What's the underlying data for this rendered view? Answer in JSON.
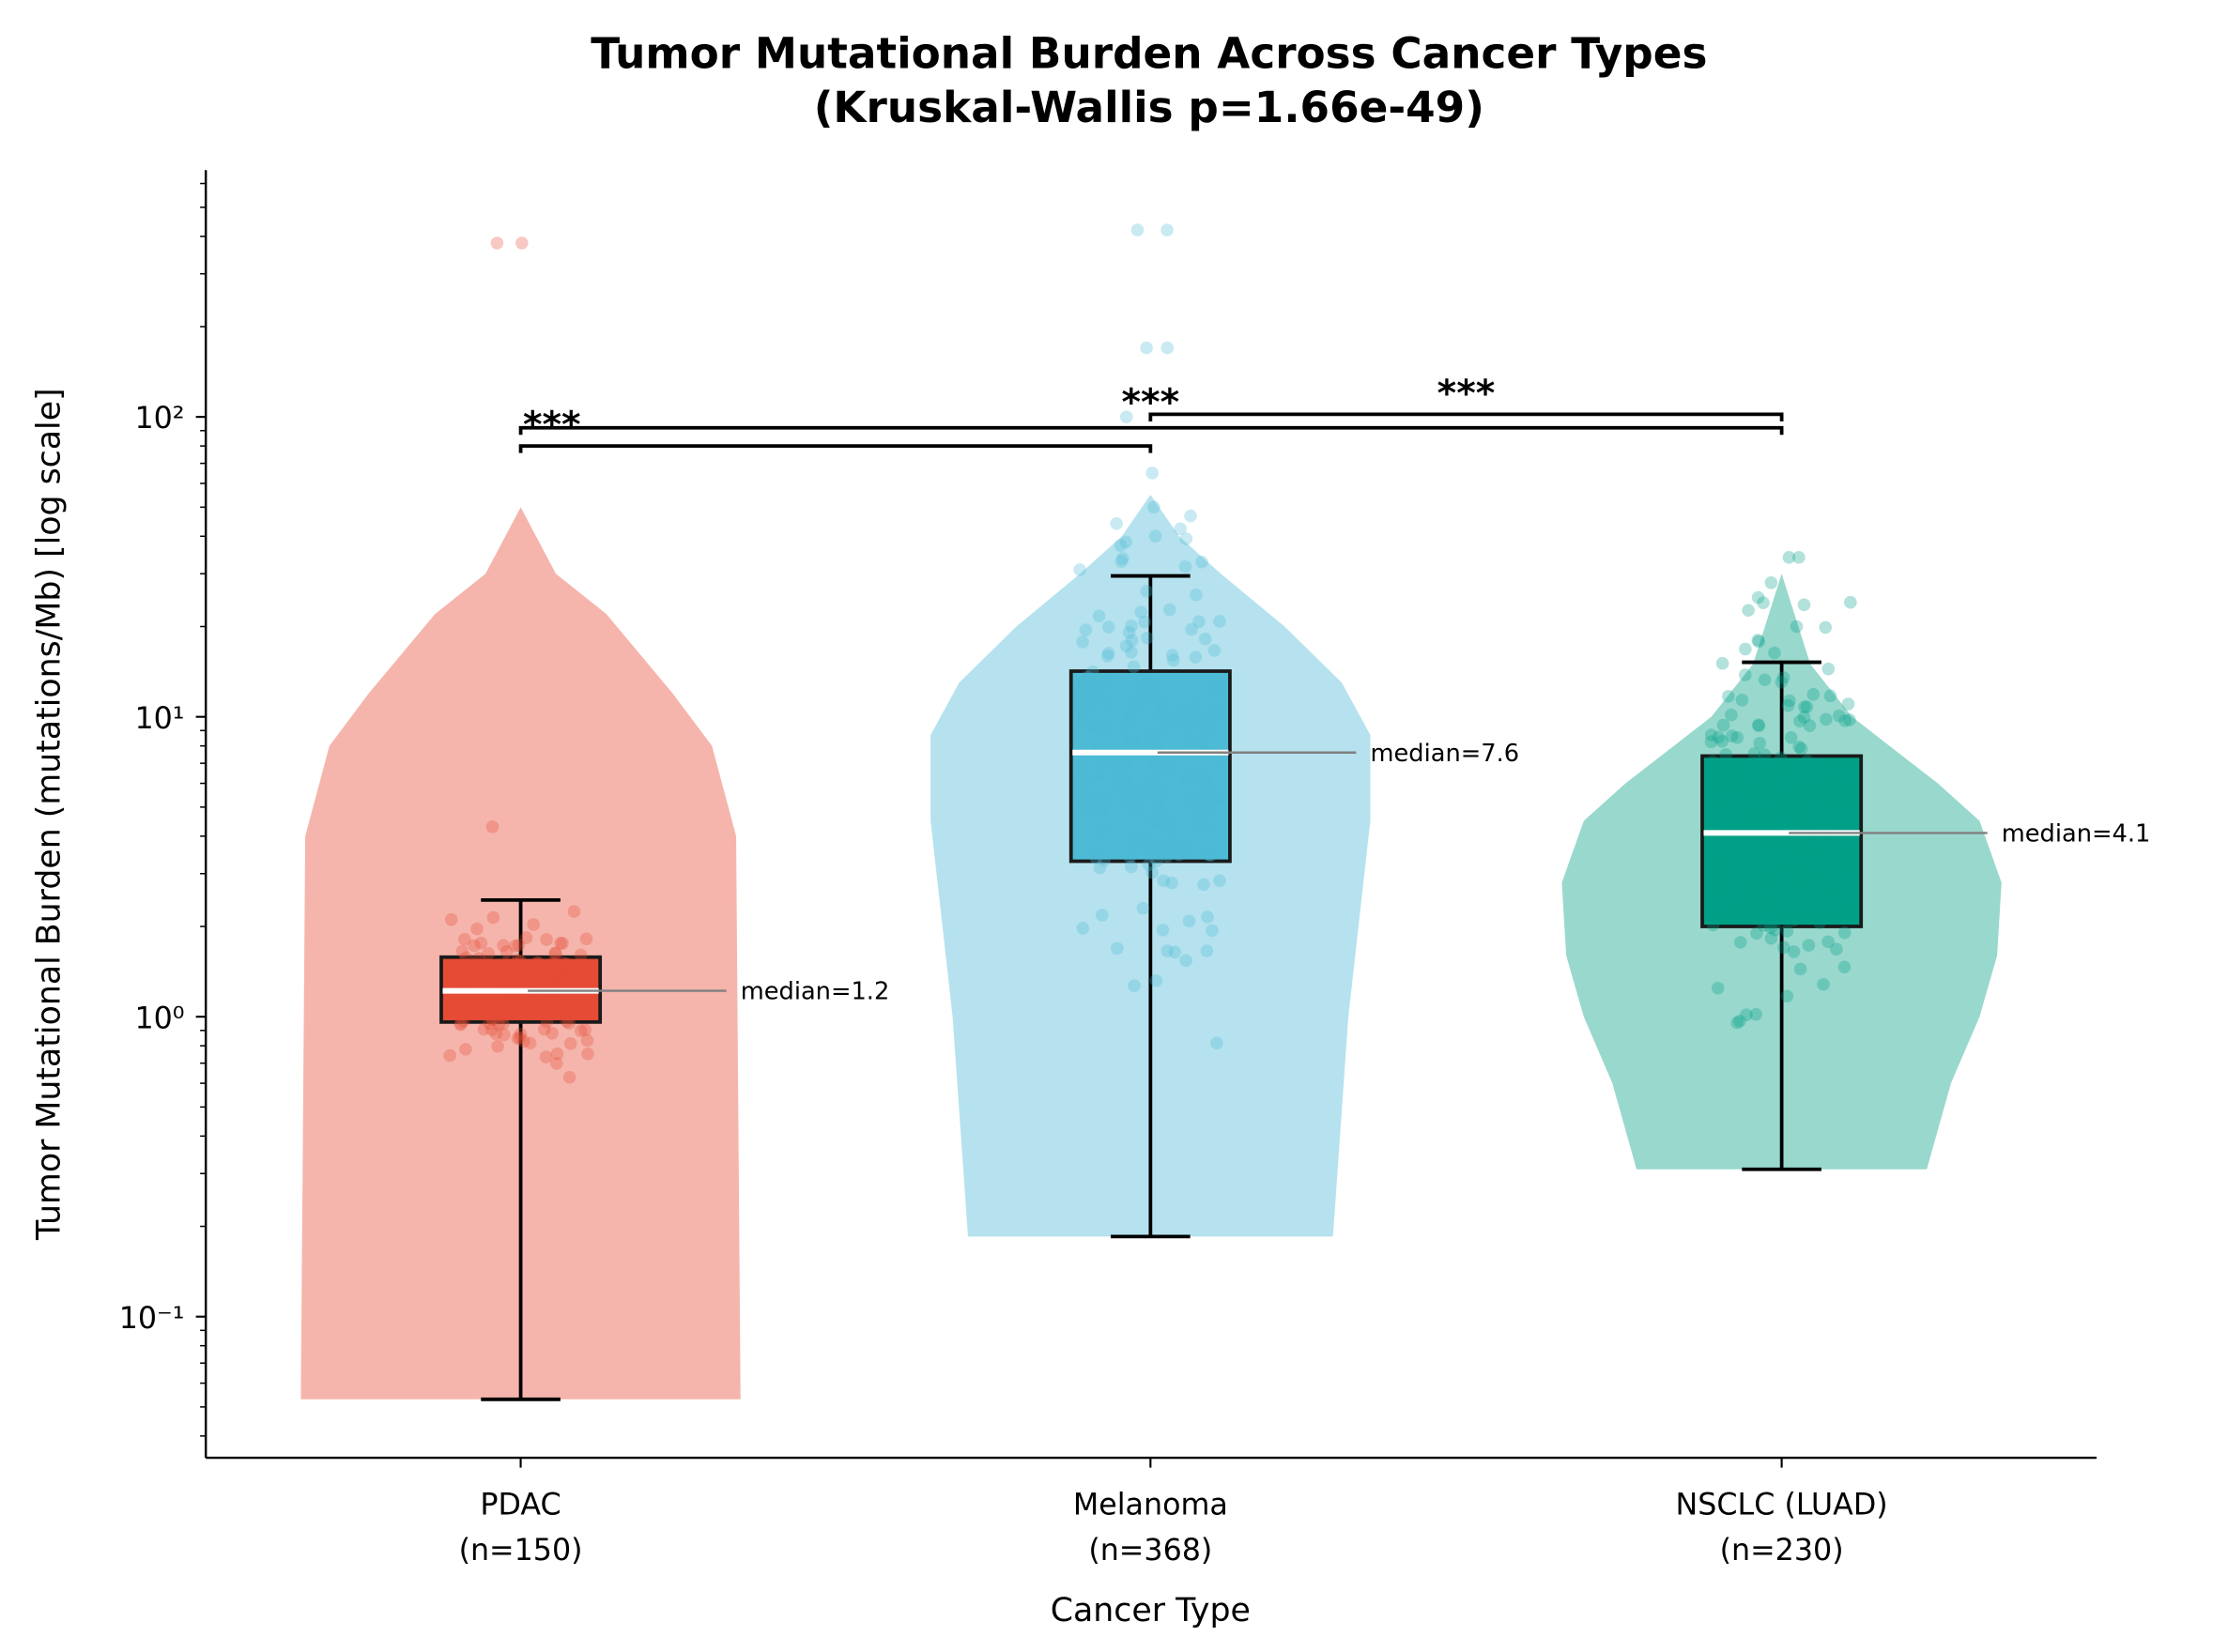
{
  "chart_data": {
    "type": "violin+box",
    "title": "Tumor Mutational Burden Across Cancer Types",
    "subtitle": "(Kruskal-Wallis p=1.66e-49)",
    "xlabel": "Cancer Type",
    "ylabel": "Tumor Mutational Burden (mutations/Mb) [log scale]",
    "yscale": "log",
    "ylim": [
      0.035,
      650
    ],
    "ytick_labels": [
      "10⁻¹",
      "10⁰",
      "10¹",
      "10²"
    ],
    "ytick_values": [
      0.1,
      1,
      10,
      100
    ],
    "grid": false,
    "groups": [
      {
        "label": "PDAC",
        "n_label": "(n=150)",
        "n": 150,
        "color": "#E64B35",
        "violin_color": "#F5B5AC",
        "whisker_low": 0.053,
        "q1": 0.96,
        "median": 1.22,
        "q3": 1.58,
        "whisker_high": 2.45,
        "median_label": "median=1.2",
        "outliers": [
          4.3,
          380,
          380
        ],
        "violin_profile": [
          [
            0.053,
            1.0
          ],
          [
            4,
            0.98
          ],
          [
            8,
            0.87
          ],
          [
            12,
            0.69
          ],
          [
            22,
            0.39
          ],
          [
            30,
            0.16
          ],
          [
            50,
            0.0
          ]
        ]
      },
      {
        "label": "Melanoma",
        "n_label": "(n=368)",
        "n": 368,
        "color": "#4DBBD5",
        "violin_color": "#B5E2EE",
        "whisker_low": 0.185,
        "q1": 3.3,
        "median": 7.6,
        "q3": 14.2,
        "whisker_high": 29.5,
        "median_label": "median=7.6",
        "outliers": [
          40,
          50,
          65,
          100,
          170,
          170,
          420,
          420
        ],
        "violin_profile": [
          [
            0.185,
            0.83
          ],
          [
            1,
            0.9
          ],
          [
            4.5,
            1.0
          ],
          [
            8.7,
            1.0
          ],
          [
            13,
            0.87
          ],
          [
            20,
            0.61
          ],
          [
            30,
            0.32
          ],
          [
            40,
            0.13
          ],
          [
            55,
            0.0
          ]
        ]
      },
      {
        "label": "NSCLC (LUAD)",
        "n_label": "(n=230)",
        "n": 230,
        "color": "#00A087",
        "violin_color": "#99D8CD",
        "whisker_low": 0.31,
        "q1": 2.0,
        "median": 4.1,
        "q3": 7.4,
        "whisker_high": 15.2,
        "median_label": "median=4.1",
        "outliers": [
          18,
          20,
          24,
          25,
          28,
          34,
          34
        ],
        "violin_profile": [
          [
            0.31,
            0.66
          ],
          [
            0.6,
            0.77
          ],
          [
            1,
            0.9
          ],
          [
            1.6,
            0.98
          ],
          [
            2.8,
            1.0
          ],
          [
            4.5,
            0.9
          ],
          [
            6,
            0.71
          ],
          [
            10,
            0.32
          ],
          [
            15,
            0.13
          ],
          [
            30,
            0.0
          ]
        ]
      }
    ],
    "significance": [
      {
        "from": "PDAC",
        "to": "Melanoma",
        "y": 80,
        "label": "***"
      },
      {
        "from": "PDAC",
        "to": "NSCLC (LUAD)",
        "y": 92,
        "label": "***"
      },
      {
        "from": "Melanoma",
        "to": "NSCLC (LUAD)",
        "y": 102,
        "label": "***"
      }
    ]
  }
}
